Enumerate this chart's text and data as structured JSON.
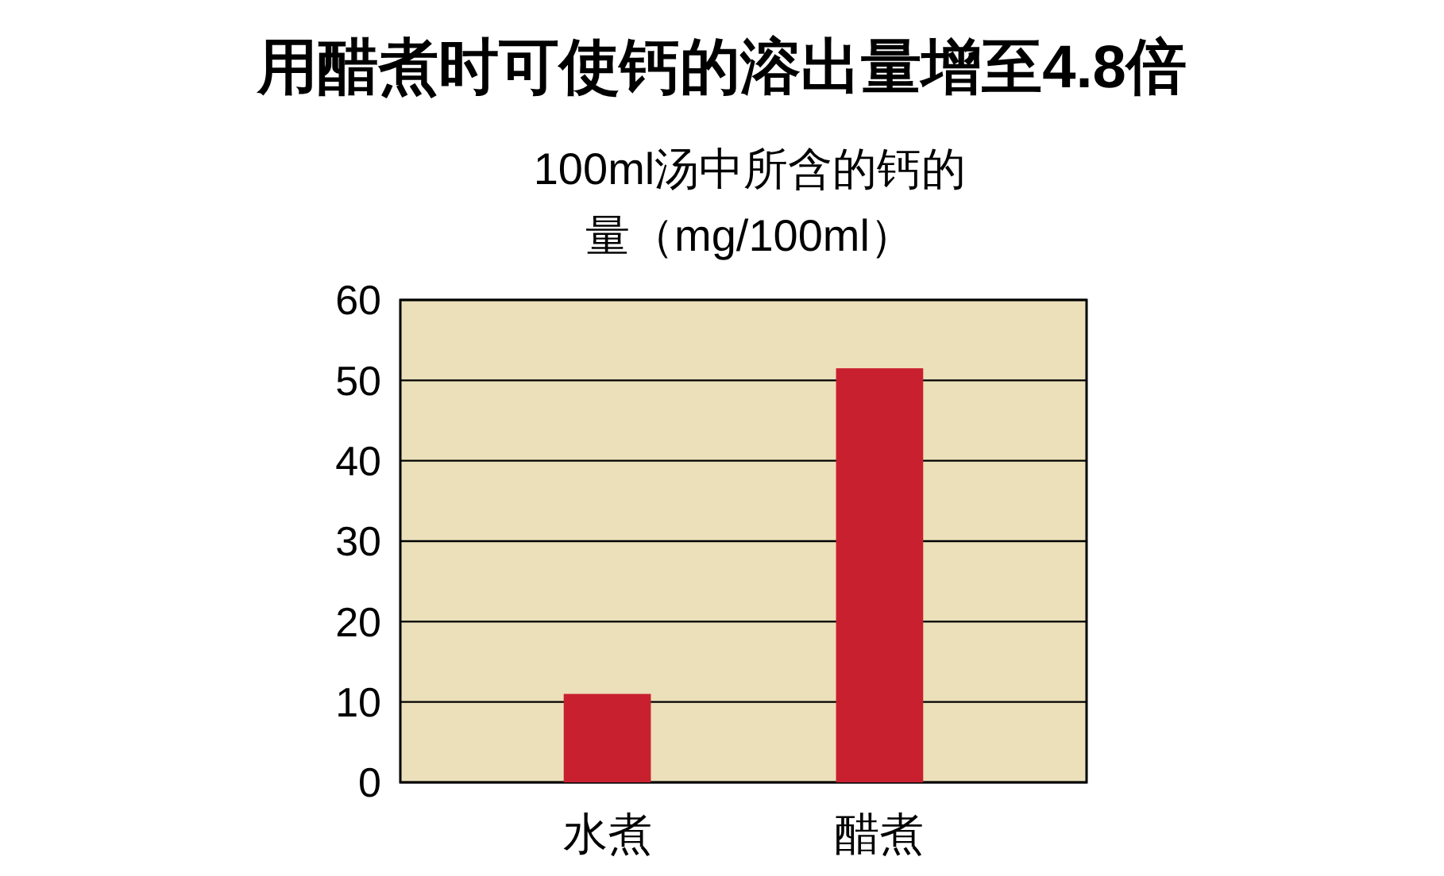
{
  "chart_data": {
    "type": "bar",
    "title": "用醋煮时可使钙的溶出量增至4.8倍",
    "ylabel": "100ml汤中所含的钙的量（mg/100ml）",
    "categories": [
      "水煮",
      "醋煮"
    ],
    "values": [
      11,
      51.5
    ],
    "color": "#c8202f",
    "ylim": [
      0,
      60
    ],
    "yticks": [
      0,
      10,
      20,
      30,
      40,
      50,
      60
    ],
    "grid": "y"
  }
}
